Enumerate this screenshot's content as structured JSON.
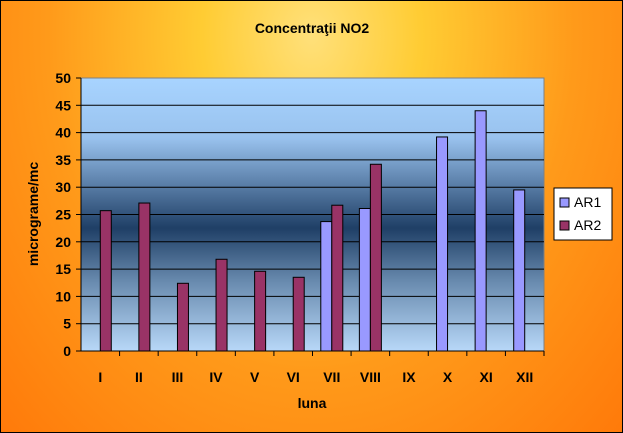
{
  "chart_data": {
    "type": "bar",
    "title": "Concentraţii NO2",
    "xlabel": "luna",
    "ylabel": "micrograme/mc",
    "ylim": [
      0,
      50
    ],
    "yticks": [
      0,
      5,
      10,
      15,
      20,
      25,
      30,
      35,
      40,
      45,
      50
    ],
    "categories": [
      "I",
      "II",
      "III",
      "IV",
      "V",
      "VI",
      "VII",
      "VIII",
      "IX",
      "X",
      "XI",
      "XII"
    ],
    "series": [
      {
        "name": "AR1",
        "color": "#9999ff",
        "values": [
          null,
          null,
          null,
          null,
          null,
          null,
          23.7,
          26.1,
          null,
          39.2,
          44.0,
          29.5
        ]
      },
      {
        "name": "AR2",
        "color": "#993366",
        "values": [
          25.7,
          27.1,
          12.4,
          16.8,
          14.6,
          13.5,
          26.7,
          34.2,
          null,
          null,
          null,
          null
        ]
      }
    ],
    "grid": true,
    "legend": "right"
  }
}
